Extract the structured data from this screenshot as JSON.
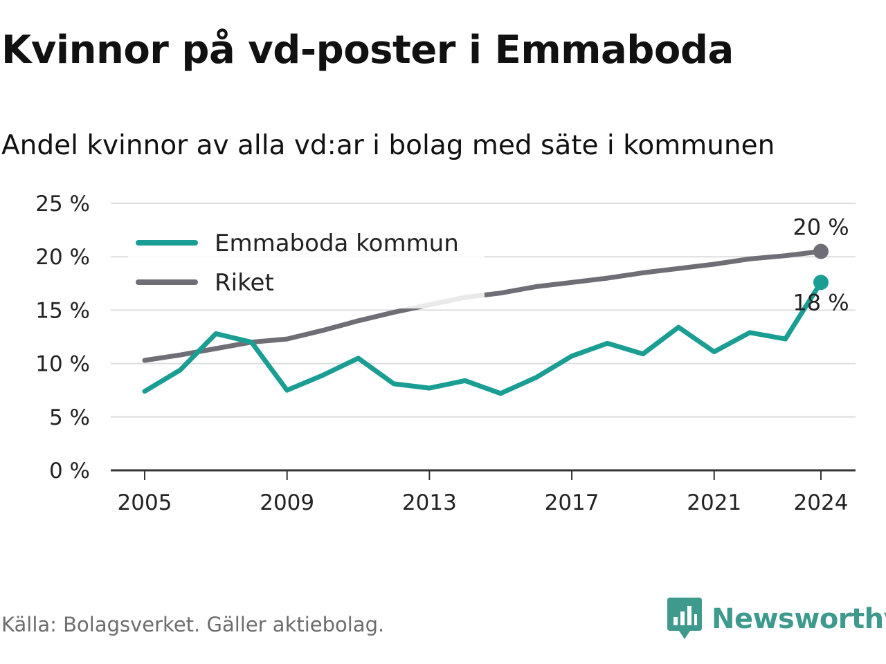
{
  "title": "Kvinnor på vd-poster i Emmaboda",
  "subtitle": "Andel kvinnor av alla vd:ar i bolag med säte i kommunen",
  "source": "Källa: Bolagsverket. Gäller aktiebolag.",
  "brand": "Newsworthy",
  "colors": {
    "emmaboda": "#1a9e94",
    "riket": "#6f6e76",
    "grid": "#dddddd",
    "axis": "#333333",
    "brand": "#3f9a8e"
  },
  "chart_data": {
    "type": "line",
    "title": "Kvinnor på vd-poster i Emmaboda",
    "subtitle": "Andel kvinnor av alla vd:ar i bolag med säte i kommunen",
    "x": [
      2005,
      2006,
      2007,
      2008,
      2009,
      2010,
      2011,
      2012,
      2013,
      2014,
      2015,
      2016,
      2017,
      2018,
      2019,
      2020,
      2021,
      2022,
      2023,
      2024
    ],
    "xticks": [
      2005,
      2009,
      2013,
      2017,
      2021,
      2024
    ],
    "ylim": [
      0,
      25
    ],
    "yticks": [
      0,
      5,
      10,
      15,
      20,
      25
    ],
    "ytick_labels": [
      "0 %",
      "5 %",
      "10 %",
      "15 %",
      "20 %",
      "25 %"
    ],
    "grid": true,
    "legend_position": "top-left",
    "series": [
      {
        "name": "Emmaboda kommun",
        "color": "#1a9e94",
        "values": [
          7.4,
          9.4,
          12.8,
          12.0,
          7.5,
          8.9,
          10.5,
          8.1,
          7.7,
          8.4,
          7.2,
          8.7,
          10.7,
          11.9,
          10.9,
          13.4,
          11.1,
          12.9,
          12.3,
          17.6
        ],
        "end_label": "18 %"
      },
      {
        "name": "Riket",
        "color": "#6f6e76",
        "values": [
          10.3,
          10.8,
          11.4,
          12.0,
          12.3,
          13.1,
          14.0,
          14.8,
          15.5,
          16.2,
          16.6,
          17.2,
          17.6,
          18.0,
          18.5,
          18.9,
          19.3,
          19.8,
          20.1,
          20.5
        ],
        "end_label": "20 %"
      }
    ]
  }
}
